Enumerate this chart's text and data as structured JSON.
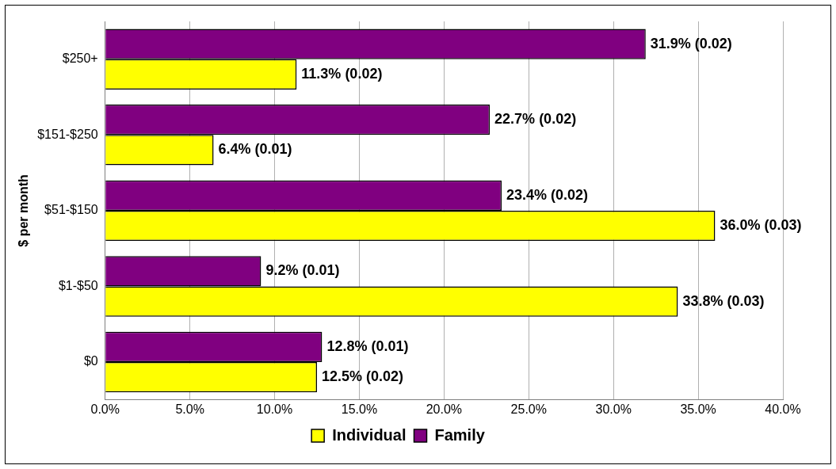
{
  "chart_data": {
    "type": "bar",
    "orientation": "horizontal",
    "ylabel": "$ per month",
    "categories": [
      "$250+",
      "$151-$250",
      "$51-$150",
      "$1-$50",
      "$0"
    ],
    "series": [
      {
        "name": "Individual",
        "color": "#ffff00",
        "values": [
          11.3,
          6.4,
          36.0,
          33.8,
          12.5
        ],
        "value_labels": [
          "11.3% (0.02)",
          "6.4% (0.01)",
          "36.0% (0.03)",
          "33.8% (0.03)",
          "12.5% (0.02)"
        ]
      },
      {
        "name": "Family",
        "color": "#800080",
        "values": [
          31.9,
          22.7,
          23.4,
          9.2,
          12.8
        ],
        "value_labels": [
          "31.9% (0.02)",
          "22.7% (0.02)",
          "23.4% (0.02)",
          "9.2% (0.01)",
          "12.8% (0.01)"
        ]
      }
    ],
    "xlim": [
      0,
      40
    ],
    "xticks": [
      {
        "value": 0,
        "label": "0.0%"
      },
      {
        "value": 5,
        "label": "5.0%"
      },
      {
        "value": 10,
        "label": "10.0%"
      },
      {
        "value": 15,
        "label": "15.0%"
      },
      {
        "value": 20,
        "label": "20.0%"
      },
      {
        "value": 25,
        "label": "25.0%"
      },
      {
        "value": 30,
        "label": "30.0%"
      },
      {
        "value": 35,
        "label": "35.0%"
      },
      {
        "value": 40,
        "label": "40.0%"
      }
    ],
    "grid": "x",
    "legend": "bottom"
  }
}
